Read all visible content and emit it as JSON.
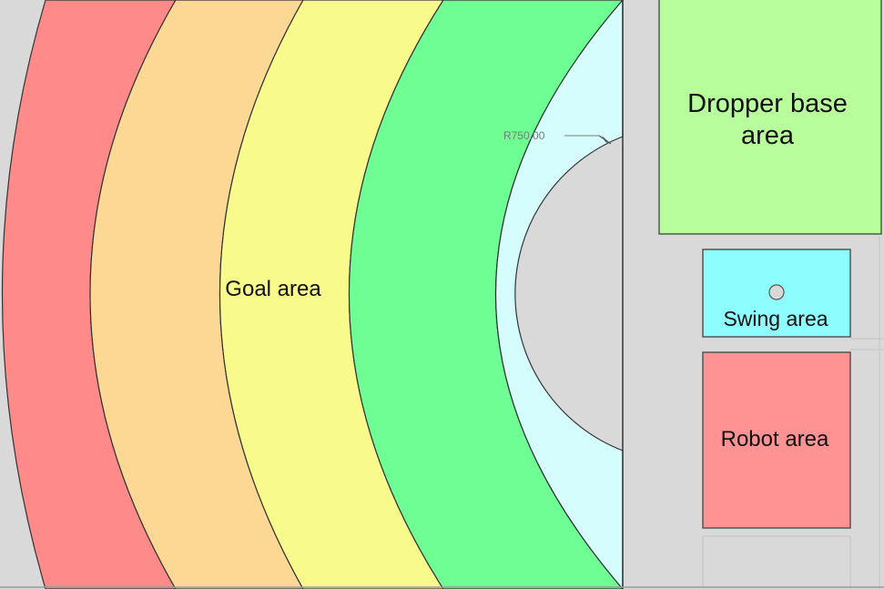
{
  "diagram": {
    "zones": {
      "outer": {
        "color": "#ff8a8a"
      },
      "ring2": {
        "color": "#fdd894"
      },
      "ring3": {
        "color": "#f8fb8c"
      },
      "ring4": {
        "color": "#6efe94"
      },
      "inner": {
        "color": "#d5fdfd"
      }
    },
    "labels": {
      "goal_area": "Goal area",
      "dimension": "R750.00",
      "dropper_line1": "Dropper base",
      "dropper_line2": "area",
      "swing_area": "Swing area",
      "robot_area": "Robot area"
    },
    "areas": {
      "dropper_color": "#b8fe9c",
      "swing_color": "#8efdfd",
      "robot_color": "#ff9393",
      "background_color": "#d9d9d9"
    }
  }
}
